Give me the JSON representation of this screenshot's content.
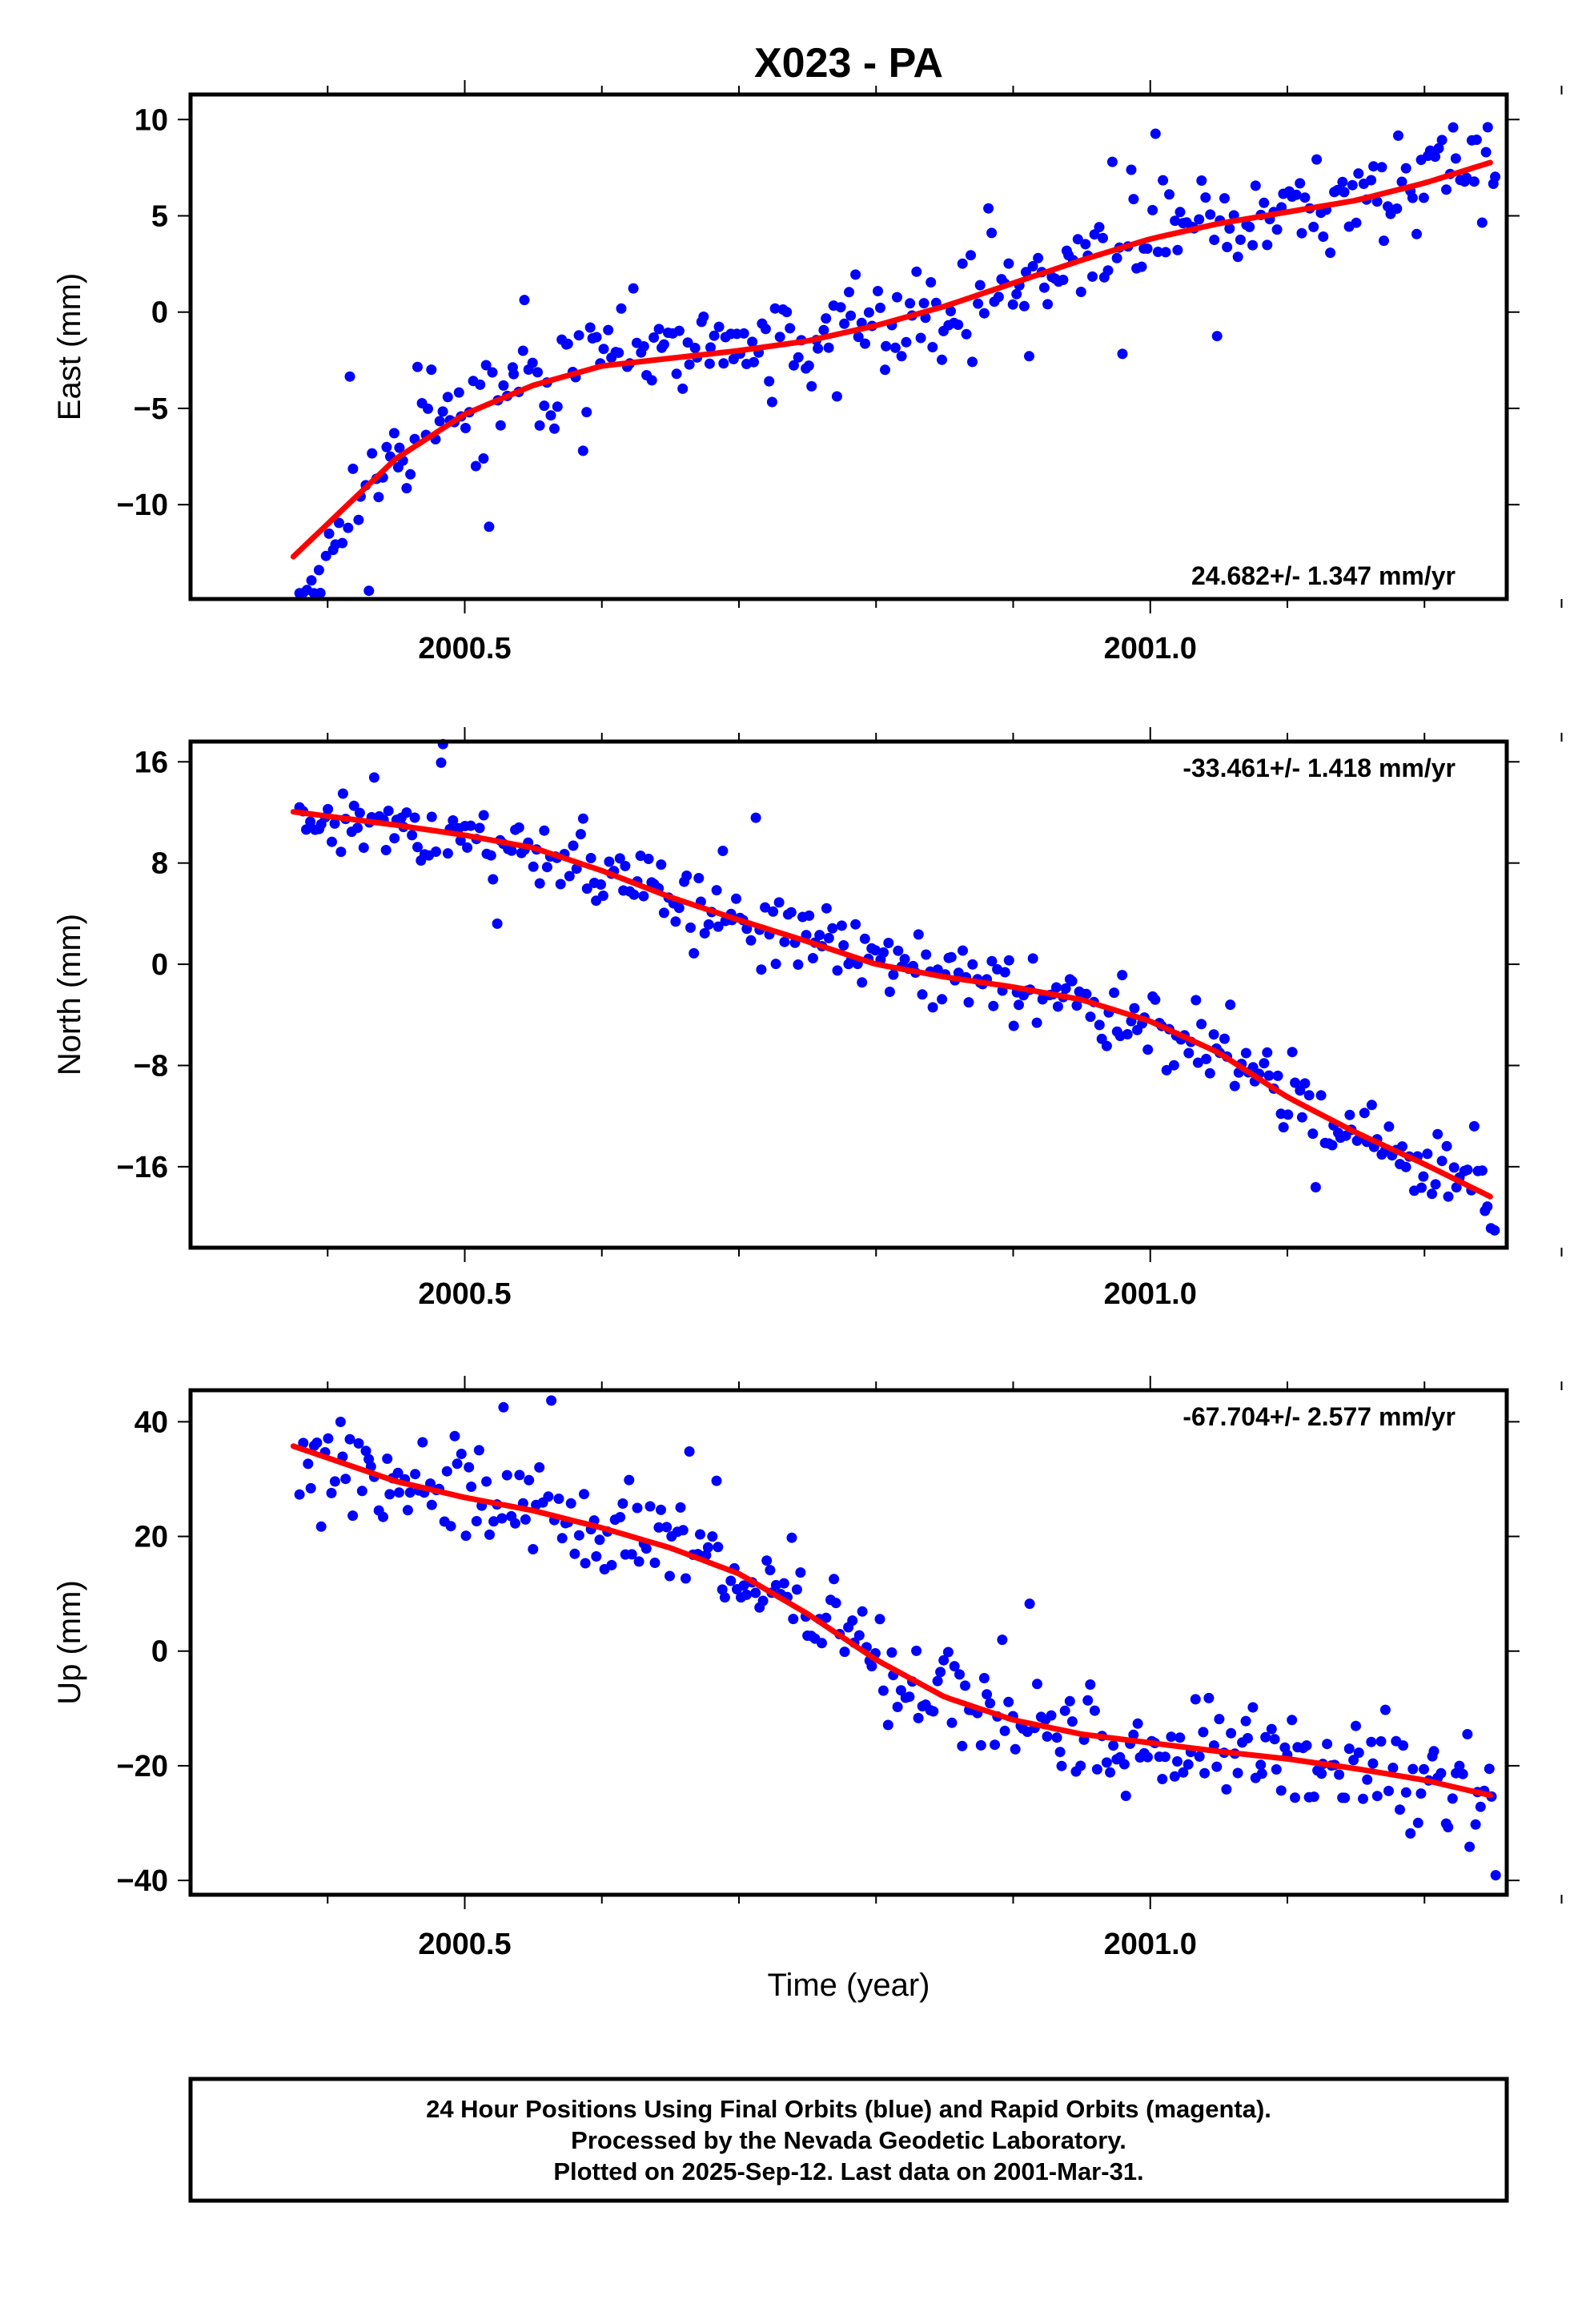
{
  "chart_data": {
    "title": "X023 - PA",
    "xlabel": "Time (year)",
    "x_tick_labels": [
      "2000.5",
      "2001.0"
    ],
    "xlim": [
      2000.3,
      2001.26
    ],
    "colors": {
      "final_orbits": "#0000ff",
      "rapid_orbits": "#ff00ff",
      "fit": "#ff0000"
    },
    "panels": [
      {
        "type": "scatter",
        "ylabel": "East (mm)",
        "ylim": [
          -14.9,
          11.3
        ],
        "y_ticks": [
          10,
          5,
          0,
          -5,
          -10
        ],
        "y_tick_labels": [
          "10",
          "5",
          "0",
          "−5",
          "−10"
        ],
        "rate_label": "24.682+/- 1.347 mm/yr",
        "rate_position": "bottom-right",
        "fit_curve": {
          "x": [
            2000.4,
            2000.45,
            2000.5,
            2000.55,
            2000.6,
            2000.65,
            2000.7,
            2000.75,
            2000.8,
            2000.85,
            2000.9,
            2000.95,
            2001.0,
            2001.05,
            2001.1,
            2001.15,
            2001.2,
            2001.245
          ],
          "y": [
            -11.0,
            -7.6,
            -5.3,
            -3.8,
            -2.8,
            -2.4,
            -2.0,
            -1.5,
            -0.7,
            0.3,
            1.5,
            2.7,
            3.8,
            4.6,
            5.2,
            5.8,
            6.7,
            7.7
          ]
        },
        "trend": {
          "start": -11.0,
          "end": 7.7
        },
        "seed": 11,
        "noise_sd": 1.3,
        "outlier_mag": 4.5
      },
      {
        "type": "scatter",
        "ylabel": "North (mm)",
        "ylim": [
          -22.4,
          17.6
        ],
        "y_ticks": [
          16,
          8,
          0,
          -8,
          -16
        ],
        "y_tick_labels": [
          "16",
          "8",
          "0",
          "−8",
          "−16"
        ],
        "rate_label": "-33.461+/- 1.418 mm/yr",
        "rate_position": "top-right",
        "fit_curve": {
          "x": [
            2000.4,
            2000.45,
            2000.5,
            2000.55,
            2000.6,
            2000.65,
            2000.7,
            2000.75,
            2000.8,
            2000.85,
            2000.9,
            2000.95,
            2001.0,
            2001.05,
            2001.1,
            2001.15,
            2001.2,
            2001.245
          ],
          "y": [
            11.7,
            11.0,
            10.2,
            9.2,
            7.4,
            5.3,
            3.5,
            1.8,
            0.0,
            -1.0,
            -1.8,
            -2.8,
            -4.5,
            -7.0,
            -10.5,
            -13.3,
            -15.8,
            -18.2
          ]
        },
        "trend": {
          "start": 11.7,
          "end": -18.2
        },
        "seed": 23,
        "noise_sd": 1.5,
        "outlier_mag": 5.0
      },
      {
        "type": "scatter",
        "ylabel": "Up (mm)",
        "ylim": [
          -42.5,
          45.5
        ],
        "y_ticks": [
          40,
          20,
          0,
          -20,
          -40
        ],
        "y_tick_labels": [
          "40",
          "20",
          "0",
          "−20",
          "−40"
        ],
        "rate_label": "-67.704+/- 2.577 mm/yr",
        "rate_position": "top-right",
        "fit_curve": {
          "x": [
            2000.4,
            2000.45,
            2000.5,
            2000.55,
            2000.6,
            2000.65,
            2000.7,
            2000.75,
            2000.8,
            2000.85,
            2000.9,
            2000.95,
            2001.0,
            2001.05,
            2001.1,
            2001.15,
            2001.2,
            2001.245
          ],
          "y": [
            33.7,
            29.6,
            26.8,
            24.5,
            21.5,
            18.0,
            13.5,
            6.5,
            -1.5,
            -8.0,
            -12.0,
            -14.5,
            -16.0,
            -17.5,
            -18.8,
            -20.5,
            -22.5,
            -25.0
          ]
        },
        "trend": {
          "start": 33.7,
          "end": -25.0
        },
        "seed": 37,
        "noise_sd": 4.2,
        "outlier_mag": 14.0
      }
    ]
  },
  "footer": {
    "line1": "24 Hour Positions Using Final Orbits (blue) and Rapid Orbits (magenta).",
    "line2": "Processed by the Nevada Geodetic Laboratory.",
    "line3": "Plotted on 2025-Sep-12. Last data on 2001-Mar-31."
  }
}
